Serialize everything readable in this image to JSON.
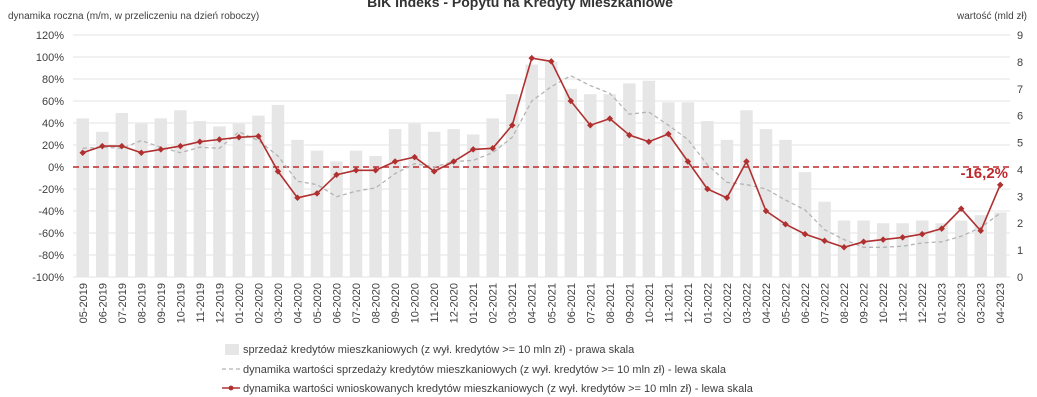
{
  "chart_data": {
    "type": "bar+line",
    "title": "BIK Indeks - Popytu na Kredyty Mieszkaniowe",
    "ylabel_left": "dynamika roczna (m/m, w przeliczeniu na dzień roboczy)",
    "ylabel_right": "wartość (mld zł)",
    "ylim_left": [
      -100,
      120
    ],
    "ylim_right": [
      0,
      9
    ],
    "left_ticks": [
      "-100%",
      "-80%",
      "-60%",
      "-40%",
      "-20%",
      "0%",
      "20%",
      "40%",
      "60%",
      "80%",
      "100%",
      "120%"
    ],
    "right_ticks": [
      "0",
      "1",
      "2",
      "3",
      "4",
      "5",
      "6",
      "7",
      "8",
      "9"
    ],
    "categories": [
      "05-2019",
      "06-2019",
      "07-2019",
      "08-2019",
      "09-2019",
      "10-2019",
      "11-2019",
      "12-2019",
      "01-2020",
      "02-2020",
      "03-2020",
      "04-2020",
      "05-2020",
      "06-2020",
      "07-2020",
      "08-2020",
      "09-2020",
      "10-2020",
      "11-2020",
      "12-2020",
      "01-2021",
      "02-2021",
      "03-2021",
      "04-2021",
      "05-2021",
      "06-2021",
      "07-2021",
      "08-2021",
      "09-2021",
      "10-2021",
      "11-2021",
      "12-2021",
      "01-2022",
      "02-2022",
      "03-2022",
      "04-2022",
      "05-2022",
      "06-2022",
      "07-2022",
      "08-2022",
      "09-2022",
      "10-2022",
      "11-2022",
      "12-2022",
      "01-2023",
      "02-2023",
      "03-2023",
      "04-2023"
    ],
    "series": [
      {
        "name": "sprzedaż kredytów mieszkaniowych (z wył. kredytów >= 10 mln zł) - prawa skala",
        "type": "bar",
        "axis": "right",
        "color": "#e6e6e6",
        "values": [
          5.9,
          5.4,
          6.1,
          5.7,
          5.9,
          6.2,
          5.8,
          5.6,
          5.7,
          6.0,
          6.4,
          5.1,
          4.7,
          4.3,
          4.7,
          4.5,
          5.5,
          5.7,
          5.4,
          5.5,
          5.3,
          5.9,
          6.8,
          7.9,
          8.0,
          7.0,
          6.8,
          6.8,
          7.2,
          7.3,
          6.5,
          6.5,
          5.8,
          5.1,
          6.2,
          5.5,
          5.1,
          3.9,
          2.8,
          2.1,
          2.1,
          2.0,
          2.0,
          2.1,
          2.0,
          2.1,
          2.3,
          2.4
        ]
      },
      {
        "name": "dynamika wartości sprzedaży kredytów mieszkaniowych (z wył. kredytów >= 10 mln zł) - lewa skala",
        "type": "line",
        "style": "dashed",
        "axis": "left",
        "color": "#b4b4b4",
        "values": [
          17,
          18,
          17,
          24,
          18,
          13,
          18,
          17,
          32,
          24,
          10,
          -13,
          -16,
          -27,
          -22,
          -19,
          -6,
          3,
          0,
          5,
          6,
          13,
          27,
          60,
          73,
          83,
          74,
          67,
          48,
          50,
          38,
          25,
          2,
          -14,
          -16,
          -20,
          -30,
          -39,
          -57,
          -66,
          -73,
          -73,
          -72,
          -69,
          -68,
          -63,
          -55,
          -42
        ]
      },
      {
        "name": "dynamika wartości wnioskowanych kredytów mieszkaniowych (z wył. kredytów >= 10 mln zł) - lewa skala",
        "type": "line",
        "style": "solid-markers",
        "axis": "left",
        "color": "#b03030",
        "values": [
          13,
          19,
          19,
          13,
          16,
          19,
          23,
          25,
          27,
          28,
          -4,
          -28,
          -24,
          -7,
          -3,
          -3,
          5,
          9,
          -4,
          5,
          16,
          17,
          38,
          99,
          96,
          60,
          38,
          44,
          29,
          23,
          30,
          5,
          -20,
          -28,
          5,
          -40,
          -52,
          -61,
          -67,
          -73,
          -68,
          -66,
          -64,
          -61,
          -56,
          -38,
          -58,
          -16.2
        ]
      }
    ],
    "reference_line": {
      "value": -16.2,
      "axis": "left",
      "label": "-16,2%",
      "color": "#c0282d"
    },
    "legend_position": "bottom",
    "grid": true
  }
}
